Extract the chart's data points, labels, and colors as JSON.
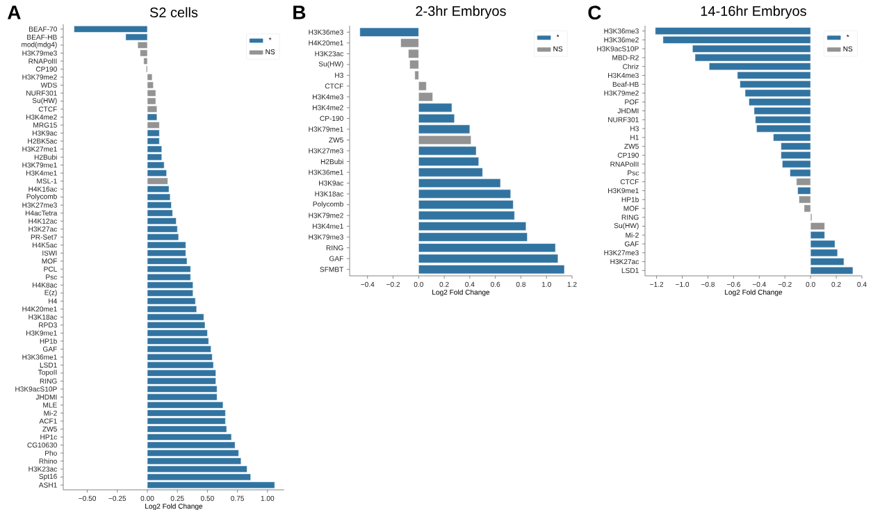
{
  "chart_data": [
    {
      "type": "bar",
      "orientation": "horizontal",
      "title": "S2 cells",
      "xlabel": "Log2 Fold Change",
      "annotations": [
        "A"
      ],
      "legend": "top right",
      "categories": [
        "BEAF-70",
        "BEAF-HB",
        "mod(mdg4)",
        "H3K79me3",
        "RNAPolII",
        "CP190",
        "H3K79me2",
        "WDS",
        "NURF301",
        "Su(HW)",
        "CTCF",
        "H3K4me2",
        "MRG15",
        "H3K9ac",
        "H2BK5ac",
        "H3K27me1",
        "H2Bubi",
        "H3K79me1",
        "H3K4me1",
        "MSL-1",
        "H4K16ac",
        "Polycomb",
        "H3K27me3",
        "H4acTetra",
        "H4K12ac",
        "H3K27ac",
        "PR-Set7",
        "H4K5ac",
        "ISWI",
        "MOF",
        "PCL",
        "Psc",
        "H4K8ac",
        "E(z)",
        "H4",
        "H4K20me1",
        "H3K18ac",
        "RPD3",
        "H3K9me1",
        "HP1b",
        "GAF",
        "H3K36me1",
        "LSD1",
        "TopoII",
        "RING",
        "H3K9acS10P",
        "JHDMI",
        "MLE",
        "Mi-2",
        "ACF1",
        "ZW5",
        "HP1c",
        "CG10630",
        "Pho",
        "Rhino",
        "H3K23ac",
        "Spt16",
        "ASH1"
      ],
      "series": [
        {
          "name": "*",
          "color": "#3274a1",
          "values": [
            -0.61,
            -0.18,
            null,
            null,
            null,
            null,
            null,
            null,
            null,
            null,
            null,
            0.08,
            null,
            0.1,
            0.1,
            0.12,
            0.12,
            0.14,
            0.16,
            null,
            0.18,
            0.19,
            0.2,
            0.21,
            0.24,
            0.25,
            0.26,
            0.32,
            0.32,
            0.33,
            0.36,
            0.36,
            0.38,
            0.38,
            0.4,
            0.41,
            0.47,
            0.48,
            0.5,
            0.51,
            0.53,
            0.54,
            0.55,
            0.57,
            0.57,
            0.58,
            0.58,
            0.63,
            0.65,
            0.65,
            0.66,
            0.7,
            0.73,
            0.76,
            0.78,
            0.83,
            0.86,
            1.06
          ]
        },
        {
          "name": "NS",
          "color": "#939393",
          "values": [
            null,
            null,
            -0.08,
            -0.06,
            -0.03,
            -0.01,
            0.04,
            0.05,
            0.07,
            0.07,
            0.08,
            null,
            0.1,
            null,
            null,
            null,
            null,
            null,
            null,
            0.17,
            null,
            null,
            null,
            null,
            null,
            null,
            null,
            null,
            null,
            null,
            null,
            null,
            null,
            null,
            null,
            null,
            null,
            null,
            null,
            null,
            null,
            null,
            null,
            null,
            null,
            null,
            null,
            null,
            null,
            null,
            null,
            null,
            null,
            null,
            null,
            null,
            null,
            null
          ]
        }
      ],
      "xlim": [
        -0.7,
        1.14
      ],
      "xticks": [
        {
          "value": -0.5,
          "label": "−0.50"
        },
        {
          "value": -0.25,
          "label": "−0.25"
        },
        {
          "value": 0,
          "label": "0.00"
        },
        {
          "value": 0.25,
          "label": "0.25"
        },
        {
          "value": 0.5,
          "label": "0.50"
        },
        {
          "value": 0.75,
          "label": "0.75"
        },
        {
          "value": 1,
          "label": "1.00"
        }
      ]
    },
    {
      "type": "bar",
      "orientation": "horizontal",
      "title": "2-3hr Embryos",
      "xlabel": "Log2 Fold Change",
      "annotations": [
        "B"
      ],
      "legend": "top right",
      "categories": [
        "H3K36me3",
        "H4K20me1",
        "H3K23ac",
        "Su(HW)",
        "H3",
        "CTCF",
        "H3K4me3",
        "H3K4me2",
        "CP-190",
        "H3K79me1",
        "ZW5",
        "H3K27me3",
        "H2Bubi",
        "H3K36me1",
        "H3K9ac",
        "H3K18ac",
        "Polycomb",
        "H3K79me2",
        "H3K4me1",
        "H3K79me3",
        "RING",
        "GAF",
        "SFMBT"
      ],
      "series": [
        {
          "name": "*",
          "color": "#3274a1",
          "values": [
            -0.46,
            null,
            null,
            null,
            null,
            null,
            null,
            0.26,
            0.28,
            0.4,
            null,
            0.45,
            0.47,
            0.5,
            0.64,
            0.72,
            0.74,
            0.75,
            0.84,
            0.85,
            1.07,
            1.09,
            1.14
          ]
        },
        {
          "name": "NS",
          "color": "#939393",
          "values": [
            null,
            -0.14,
            -0.08,
            -0.07,
            -0.03,
            0.06,
            0.11,
            null,
            null,
            null,
            0.41,
            null,
            null,
            null,
            null,
            null,
            null,
            null,
            null,
            null,
            null,
            null,
            null
          ]
        }
      ],
      "xlim": [
        -0.54,
        1.2
      ],
      "xticks": [
        {
          "value": -0.4,
          "label": "−0.4"
        },
        {
          "value": -0.2,
          "label": "−0.2"
        },
        {
          "value": 0,
          "label": "0.0"
        },
        {
          "value": 0.2,
          "label": "0.2"
        },
        {
          "value": 0.4,
          "label": "0.4"
        },
        {
          "value": 0.6,
          "label": "0.6"
        },
        {
          "value": 0.8,
          "label": "0.8"
        },
        {
          "value": 1,
          "label": "1.0"
        },
        {
          "value": 1.2,
          "label": "1.2"
        }
      ]
    },
    {
      "type": "bar",
      "orientation": "horizontal",
      "title": "14-16hr Embryos",
      "xlabel": "Log2 Fold Change",
      "annotations": [
        "C"
      ],
      "legend": "top right",
      "categories": [
        "H3K36me3",
        "H3K36me2",
        "H3K9acS10P",
        "MBD-R2",
        "Chriz",
        "H3K4me3",
        "Beaf-HB",
        "H3K79me2",
        "POF",
        "JHDMI",
        "NURF301",
        "H3",
        "H1",
        "ZW5",
        "CP190",
        "RNAPolII",
        "Psc",
        "CTCF",
        "H3K9me1",
        "HP1b",
        "MOF",
        "RING",
        "Su(HW)",
        "Mi-2",
        "GAF",
        "H3K27me3",
        "H3K27ac",
        "LSD1"
      ],
      "series": [
        {
          "name": "*",
          "color": "#3274a1",
          "values": [
            -1.21,
            -1.15,
            -0.92,
            -0.9,
            -0.79,
            -0.57,
            -0.55,
            -0.51,
            -0.48,
            -0.44,
            -0.43,
            -0.42,
            -0.29,
            -0.23,
            -0.23,
            -0.22,
            -0.16,
            null,
            -0.1,
            null,
            null,
            null,
            null,
            0.11,
            0.19,
            0.21,
            0.26,
            0.33
          ]
        },
        {
          "name": "NS",
          "color": "#939393",
          "values": [
            null,
            null,
            null,
            null,
            null,
            null,
            null,
            null,
            null,
            null,
            null,
            null,
            null,
            null,
            null,
            null,
            null,
            -0.11,
            null,
            -0.09,
            -0.05,
            0.01,
            0.11,
            null,
            null,
            null,
            null,
            null
          ]
        }
      ],
      "xlim": [
        -1.29,
        0.4
      ],
      "xticks": [
        {
          "value": -1.2,
          "label": "−1.2"
        },
        {
          "value": -1,
          "label": "−1.0"
        },
        {
          "value": -0.8,
          "label": "−0.8"
        },
        {
          "value": -0.6,
          "label": "−0.6"
        },
        {
          "value": -0.4,
          "label": "−0.4"
        },
        {
          "value": -0.2,
          "label": "−0.2"
        },
        {
          "value": 0,
          "label": "0.0"
        },
        {
          "value": 0.2,
          "label": "0.2"
        },
        {
          "value": 0.4,
          "label": "0.4"
        }
      ]
    }
  ]
}
